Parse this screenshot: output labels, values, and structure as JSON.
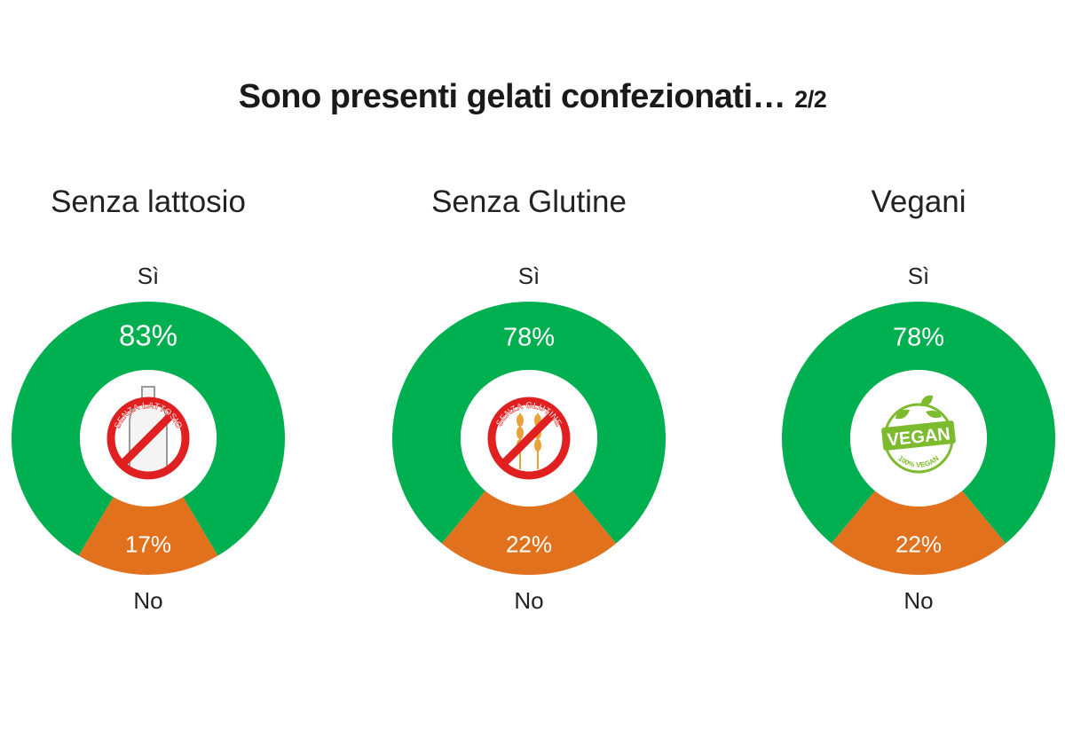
{
  "title": "Sono presenti gelati confezionati…",
  "title_page": "2/2",
  "colors": {
    "yes": "#00B050",
    "no": "#E2711D",
    "badge_red": "#E02020",
    "vegan_green": "#7DBB2E"
  },
  "chart_data": [
    {
      "type": "pie",
      "title": "Senza lattosio",
      "categories": [
        "Sì",
        "No"
      ],
      "values": [
        83,
        17
      ],
      "value_labels": [
        "83%",
        "17%"
      ],
      "icon": "lactose-free-icon",
      "icon_text": "SENZA LATTOSIO"
    },
    {
      "type": "pie",
      "title": "Senza Glutine",
      "categories": [
        "Sì",
        "No"
      ],
      "values": [
        78,
        22
      ],
      "value_labels": [
        "78%",
        "22%"
      ],
      "icon": "gluten-free-icon",
      "icon_text": "SENZA GLUTINE"
    },
    {
      "type": "pie",
      "title": "Vegani",
      "categories": [
        "Sì",
        "No"
      ],
      "values": [
        78,
        22
      ],
      "value_labels": [
        "78%",
        "22%"
      ],
      "icon": "vegan-icon",
      "icon_text": "VEGAN",
      "icon_subtext": "100% VEGAN"
    }
  ]
}
